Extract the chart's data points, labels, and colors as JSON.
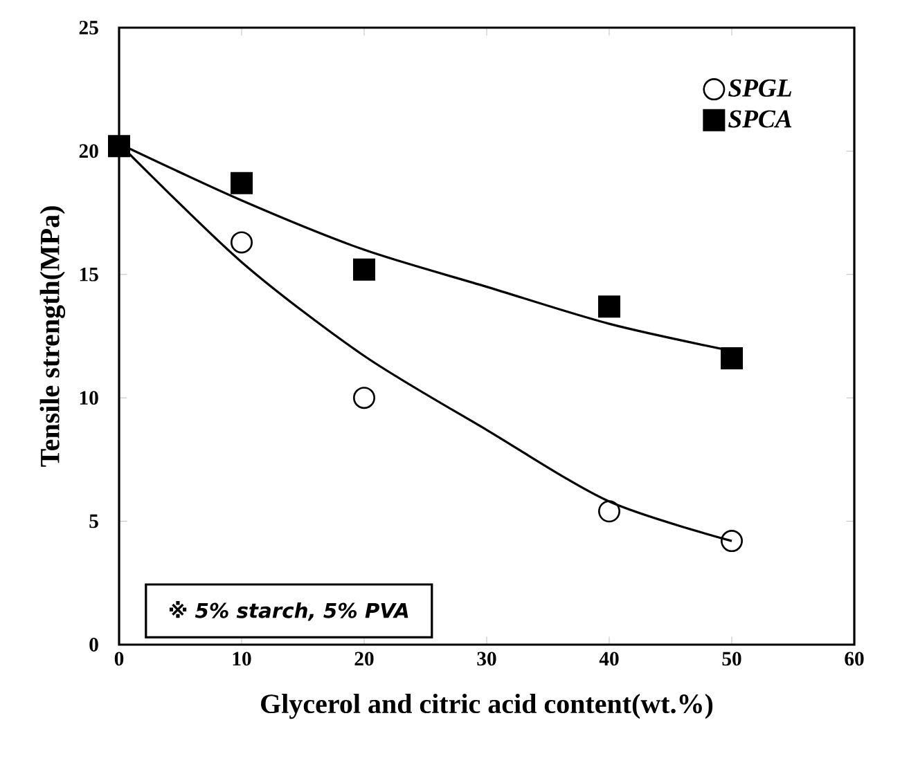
{
  "chart_data": {
    "type": "scatter",
    "xlabel": "Glycerol and citric acid content(wt.%)",
    "ylabel": "Tensile strength(MPa)",
    "x": [
      0,
      10,
      20,
      40,
      50
    ],
    "series": [
      {
        "name": "SPGL",
        "color": "#000000",
        "marker": "circle",
        "values": [
          null,
          16.3,
          10.0,
          5.4,
          4.2
        ]
      },
      {
        "name": "SPCA",
        "color": "#000000",
        "marker": "square",
        "values": [
          20.2,
          18.7,
          15.2,
          13.7,
          11.6
        ]
      },
      {
        "type": "line",
        "color": "#000000",
        "x": [
          0,
          10,
          20,
          30,
          40,
          50
        ],
        "values": [
          20.3,
          15.5,
          11.7,
          8.7,
          5.8,
          4.2
        ]
      },
      {
        "type": "line",
        "color": "#000000",
        "x": [
          0,
          10,
          20,
          30,
          40,
          50
        ],
        "values": [
          20.3,
          18.0,
          16.0,
          14.5,
          13.0,
          11.9
        ]
      }
    ],
    "xlim": [
      0,
      60
    ],
    "ylim": [
      0,
      25
    ],
    "xticks": [
      0,
      10,
      20,
      30,
      40,
      50,
      60
    ],
    "yticks": [
      0,
      5,
      10,
      15,
      20,
      25
    ],
    "legend": "top right",
    "grid": false,
    "annotations": [
      "※ 5% starch, 5% PVA"
    ]
  }
}
